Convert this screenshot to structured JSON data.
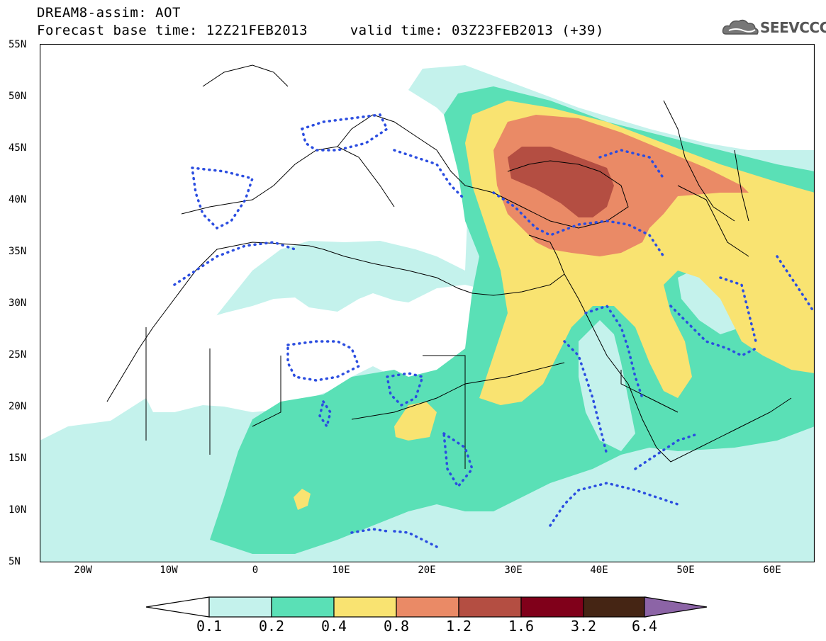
{
  "title": {
    "line1": "DREAM8-assim: AOT",
    "line2": "Forecast base time: 12Z21FEB2013     valid time: 03Z23FEB2013 (+39)"
  },
  "logo": {
    "text": "SEEVCCC",
    "icon": "cloud-logo-icon"
  },
  "map": {
    "y_ticks": [
      "55N",
      "50N",
      "45N",
      "40N",
      "35N",
      "30N",
      "25N",
      "20N",
      "15N",
      "10N",
      "5N"
    ],
    "x_ticks": [
      "20W",
      "10W",
      "0",
      "10E",
      "20E",
      "30E",
      "40E",
      "50E",
      "60E"
    ],
    "lon_range": [
      -25,
      65
    ],
    "lat_range": [
      5,
      55
    ]
  },
  "colorbar": {
    "labels": [
      "0.1",
      "0.2",
      "0.4",
      "0.8",
      "1.2",
      "1.6",
      "3.2",
      "6.4"
    ],
    "colors": [
      "#c4f2ec",
      "#5ae0b6",
      "#f9e371",
      "#ea8a66",
      "#b44e42",
      "#80001a",
      "#452514",
      "#8c64a6"
    ]
  }
}
